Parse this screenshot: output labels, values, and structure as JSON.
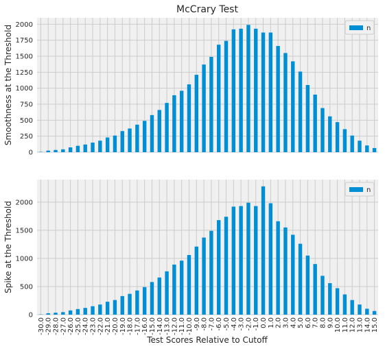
{
  "figure": {
    "title": "McCrary Test",
    "xlabel": "Test Scores Relative to Cutoff"
  },
  "chart_data": [
    {
      "type": "bar",
      "title": "McCrary Test",
      "ylabel": "Smoothness at the Threshold",
      "xlabel": "",
      "ylim": [
        0,
        2100
      ],
      "yticks": [
        0,
        250,
        500,
        750,
        1000,
        1250,
        1500,
        1750,
        2000
      ],
      "grid": true,
      "legend": "top-right",
      "series": [
        {
          "name": "n",
          "color": "#008fd5",
          "values": [
            5,
            25,
            35,
            45,
            75,
            100,
            120,
            150,
            180,
            230,
            260,
            330,
            370,
            430,
            490,
            580,
            660,
            770,
            890,
            960,
            1060,
            1210,
            1370,
            1490,
            1680,
            1740,
            1920,
            1930,
            1990,
            1930,
            1870,
            1870,
            1660,
            1550,
            1420,
            1260,
            1050,
            900,
            690,
            560,
            470,
            360,
            260,
            180,
            105,
            65
          ]
        }
      ]
    },
    {
      "type": "bar",
      "ylabel": "Spike at the Threshold",
      "xlabel": "Test Scores Relative to Cutoff",
      "ylim": [
        0,
        2400
      ],
      "yticks": [
        0,
        500,
        1000,
        1500,
        2000
      ],
      "grid": true,
      "legend": "top-right",
      "series": [
        {
          "name": "n",
          "color": "#008fd5",
          "values": [
            5,
            25,
            35,
            45,
            75,
            100,
            120,
            150,
            180,
            230,
            260,
            330,
            370,
            430,
            490,
            580,
            660,
            770,
            890,
            960,
            1060,
            1210,
            1370,
            1490,
            1680,
            1740,
            1920,
            1930,
            1990,
            1930,
            2280,
            1980,
            1660,
            1550,
            1420,
            1260,
            1050,
            900,
            690,
            560,
            470,
            360,
            260,
            180,
            105,
            65
          ]
        }
      ]
    }
  ],
  "categories": [
    "-30.0",
    "-29.0",
    "-28.0",
    "-27.0",
    "-26.0",
    "-25.0",
    "-24.0",
    "-23.0",
    "-22.0",
    "-21.0",
    "-20.0",
    "-19.0",
    "-18.0",
    "-17.0",
    "-16.0",
    "-15.0",
    "-14.0",
    "-13.0",
    "-12.0",
    "-11.0",
    "-10.0",
    "-9.0",
    "-8.0",
    "-7.0",
    "-6.0",
    "-5.0",
    "-4.0",
    "-3.0",
    "-2.0",
    "-1.0",
    "0.0",
    "1.0",
    "2.0",
    "3.0",
    "4.0",
    "5.0",
    "6.0",
    "7.0",
    "8.0",
    "9.0",
    "10.0",
    "11.0",
    "12.0",
    "13.0",
    "14.0",
    "15.0"
  ]
}
